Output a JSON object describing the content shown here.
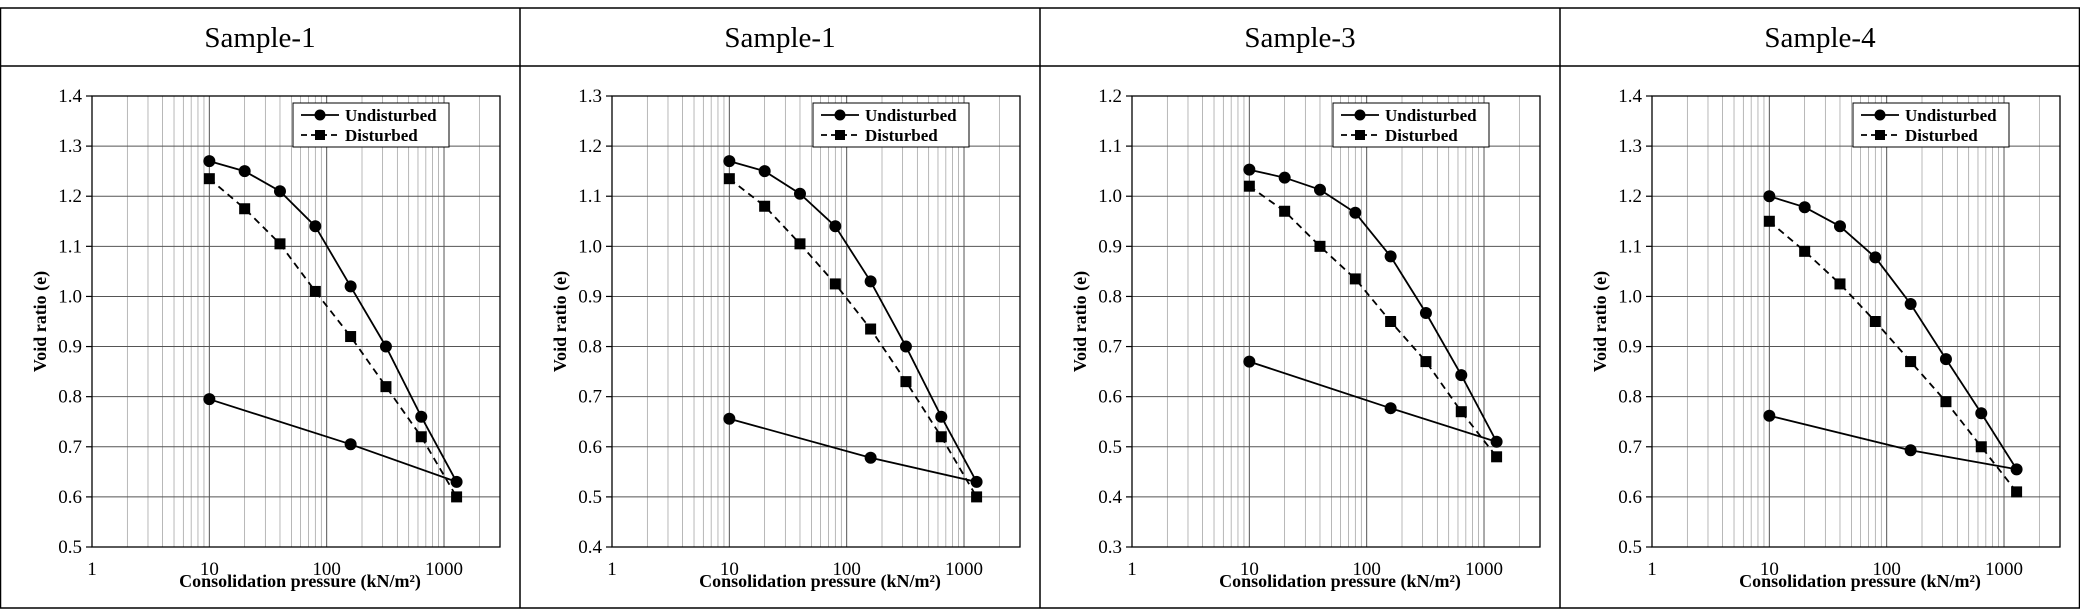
{
  "chart_data": [
    {
      "type": "line",
      "title": "Sample-1",
      "xlabel": "Consolidation pressure (kN/m²)",
      "ylabel": "Void ratio (e)",
      "xscale": "log",
      "xlim": [
        1,
        3000
      ],
      "ylim": [
        0.5,
        1.4
      ],
      "yticks": [
        "0.5",
        "0.6",
        "0.7",
        "0.8",
        "0.9",
        "1.0",
        "1.1",
        "1.2",
        "1.3",
        "1.4"
      ],
      "xticks": [
        "1",
        "10",
        "100",
        "1000"
      ],
      "legend_position": "top-right",
      "series": [
        {
          "name": "Undisturbed",
          "marker": "circle",
          "style": "solid",
          "x": [
            10,
            20,
            40,
            80,
            160,
            320,
            640,
            1280,
            160,
            10
          ],
          "y": [
            1.27,
            1.25,
            1.21,
            1.14,
            1.02,
            0.9,
            0.76,
            0.63,
            0.705,
            0.795
          ]
        },
        {
          "name": "Disturbed",
          "marker": "square",
          "style": "dashed",
          "x": [
            10,
            20,
            40,
            80,
            160,
            320,
            640,
            1280
          ],
          "y": [
            1.235,
            1.175,
            1.105,
            1.01,
            0.92,
            0.82,
            0.72,
            0.6
          ]
        }
      ]
    },
    {
      "type": "line",
      "title": "Sample-1",
      "xlabel": "Consolidation pressure (kN/m²)",
      "ylabel": "Void ratio (e)",
      "xscale": "log",
      "xlim": [
        1,
        3000
      ],
      "ylim": [
        0.4,
        1.3
      ],
      "yticks": [
        "0.4",
        "0.5",
        "0.6",
        "0.7",
        "0.8",
        "0.9",
        "1.0",
        "1.1",
        "1.2",
        "1.3"
      ],
      "xticks": [
        "1",
        "10",
        "100",
        "1000"
      ],
      "legend_position": "top-right",
      "series": [
        {
          "name": "Undisturbed",
          "marker": "circle",
          "style": "solid",
          "x": [
            10,
            20,
            40,
            80,
            160,
            320,
            640,
            1280,
            160,
            10
          ],
          "y": [
            1.17,
            1.15,
            1.105,
            1.04,
            0.93,
            0.8,
            0.66,
            0.53,
            0.578,
            0.656
          ]
        },
        {
          "name": "Disturbed",
          "marker": "square",
          "style": "dashed",
          "x": [
            10,
            20,
            40,
            80,
            160,
            320,
            640,
            1280
          ],
          "y": [
            1.135,
            1.08,
            1.005,
            0.925,
            0.835,
            0.73,
            0.62,
            0.5
          ]
        }
      ]
    },
    {
      "type": "line",
      "title": "Sample-3",
      "xlabel": "Consolidation pressure (kN/m²)",
      "ylabel": "Void ratio (e)",
      "xscale": "log",
      "xlim": [
        1,
        3000
      ],
      "ylim": [
        0.3,
        1.2
      ],
      "yticks": [
        "0.3",
        "0.4",
        "0.5",
        "0.6",
        "0.7",
        "0.8",
        "0.9",
        "1.0",
        "1.1",
        "1.2"
      ],
      "xticks": [
        "1",
        "10",
        "100",
        "1000"
      ],
      "legend_position": "top-right",
      "series": [
        {
          "name": "Undisturbed",
          "marker": "circle",
          "style": "solid",
          "x": [
            10,
            20,
            40,
            80,
            160,
            320,
            640,
            1280,
            160,
            10
          ],
          "y": [
            1.053,
            1.037,
            1.013,
            0.967,
            0.88,
            0.767,
            0.643,
            0.51,
            0.577,
            0.67
          ]
        },
        {
          "name": "Disturbed",
          "marker": "square",
          "style": "dashed",
          "x": [
            10,
            20,
            40,
            80,
            160,
            320,
            640,
            1280
          ],
          "y": [
            1.02,
            0.97,
            0.9,
            0.835,
            0.75,
            0.67,
            0.57,
            0.48
          ]
        }
      ]
    },
    {
      "type": "line",
      "title": "Sample-4",
      "xlabel": "Consolidation pressure (kN/m²)",
      "ylabel": "Void ratio (e)",
      "xscale": "log",
      "xlim": [
        1,
        3000
      ],
      "ylim": [
        0.5,
        1.4
      ],
      "yticks": [
        "0.5",
        "0.6",
        "0.7",
        "0.8",
        "0.9",
        "1.0",
        "1.1",
        "1.2",
        "1.3",
        "1.4"
      ],
      "xticks": [
        "1",
        "10",
        "100",
        "1000"
      ],
      "legend_position": "top-right",
      "series": [
        {
          "name": "Undisturbed",
          "marker": "circle",
          "style": "solid",
          "x": [
            10,
            20,
            40,
            80,
            160,
            320,
            640,
            1280,
            160,
            10
          ],
          "y": [
            1.2,
            1.178,
            1.14,
            1.078,
            0.985,
            0.875,
            0.767,
            0.655,
            0.693,
            0.762
          ]
        },
        {
          "name": "Disturbed",
          "marker": "square",
          "style": "dashed",
          "x": [
            10,
            20,
            40,
            80,
            160,
            320,
            640,
            1280
          ],
          "y": [
            1.15,
            1.09,
            1.025,
            0.95,
            0.87,
            0.79,
            0.7,
            0.61
          ]
        }
      ]
    }
  ]
}
